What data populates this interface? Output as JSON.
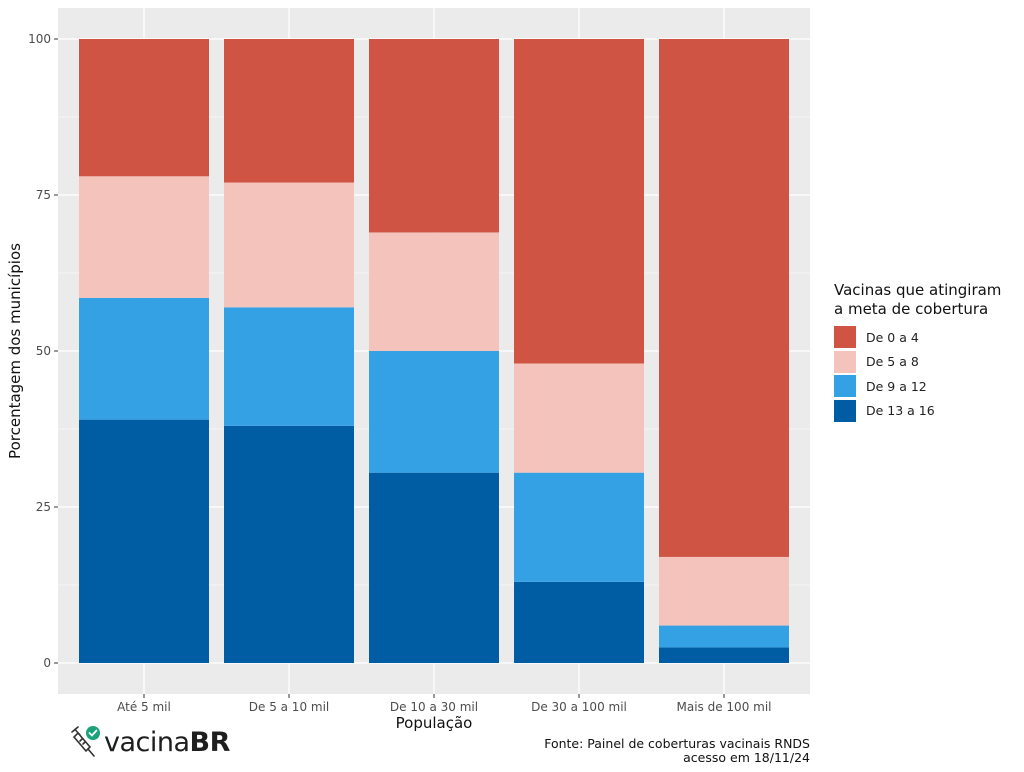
{
  "chart_data": {
    "type": "bar",
    "stacked": true,
    "categories": [
      "Até 5 mil",
      "De 5 a 10 mil",
      "De 10 a 30 mil",
      "De 30 a 100 mil",
      "Mais de 100 mil"
    ],
    "series": [
      {
        "name": "De 13 a 16",
        "color": "#005da4",
        "values": [
          39,
          38,
          30.5,
          13,
          2.5
        ]
      },
      {
        "name": "De 9 a 12",
        "color": "#35a1e5",
        "values": [
          19.5,
          19,
          19.5,
          17.5,
          3.5
        ]
      },
      {
        "name": "De 5 a 8",
        "color": "#f4c3bb",
        "values": [
          19.5,
          20,
          19,
          17.5,
          11
        ]
      },
      {
        "name": "De 0 a 4",
        "color": "#cf5443",
        "values": [
          22,
          23,
          31,
          52,
          83
        ]
      }
    ],
    "xlabel": "População",
    "ylabel": "Porcentagem dos municípios",
    "ylim": [
      0,
      100
    ],
    "yticks": [
      0,
      25,
      50,
      75,
      100
    ],
    "grid": true,
    "legend_title": "Vacinas que atingiram a meta de cobertura",
    "legend_title_lines": [
      "Vacinas que atingiram",
      "a meta de cobertura"
    ],
    "legend_position": "right",
    "panel_color": "#ebebeb"
  },
  "legend_items": [
    {
      "label": "De 0 a 4",
      "color": "#cf5443"
    },
    {
      "label": "De 5 a 8",
      "color": "#f4c3bb"
    },
    {
      "label": "De 9 a 12",
      "color": "#35a1e5"
    },
    {
      "label": "De 13 a 16",
      "color": "#005da4"
    }
  ],
  "footer": {
    "logo_prefix": "vacina",
    "logo_brand": "BR",
    "source_line1": "Fonte: Painel de coberturas vacinais RNDS",
    "source_line2": "acesso em 18/11/24"
  }
}
